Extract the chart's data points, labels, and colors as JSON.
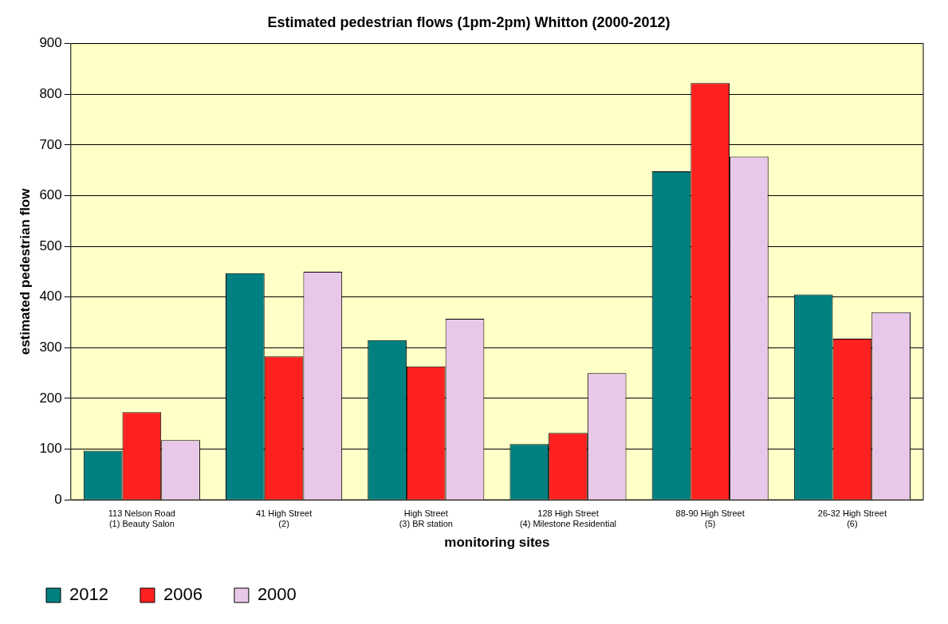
{
  "chart_data": {
    "type": "bar",
    "title": "Estimated pedestrian flows (1pm-2pm) Whitton (2000-2012)",
    "xlabel": "monitoring sites",
    "ylabel": "estimated pedestrian flow",
    "categories": [
      "113 Nelson Road\n(1) Beauty Salon",
      "41 High Street\n(2)",
      "High Street\n(3) BR station",
      "128 High Street\n(4) Milestone Residential",
      "88-90 High Street\n(5)",
      "26-32 High Street\n(6)"
    ],
    "series": [
      {
        "name": "2012",
        "color": "#008080",
        "values": [
          97,
          447,
          315,
          110,
          648,
          405
        ]
      },
      {
        "name": "2006",
        "color": "#ff2020",
        "values": [
          173,
          283,
          263,
          132,
          822,
          318
        ]
      },
      {
        "name": "2000",
        "color": "#e8c8e8",
        "values": [
          118,
          450,
          357,
          250,
          677,
          370
        ]
      }
    ],
    "ylim": [
      0,
      900
    ],
    "yticks": [
      0,
      100,
      200,
      300,
      400,
      500,
      600,
      700,
      800,
      900
    ],
    "grid": "y",
    "legend": "bottom left"
  }
}
